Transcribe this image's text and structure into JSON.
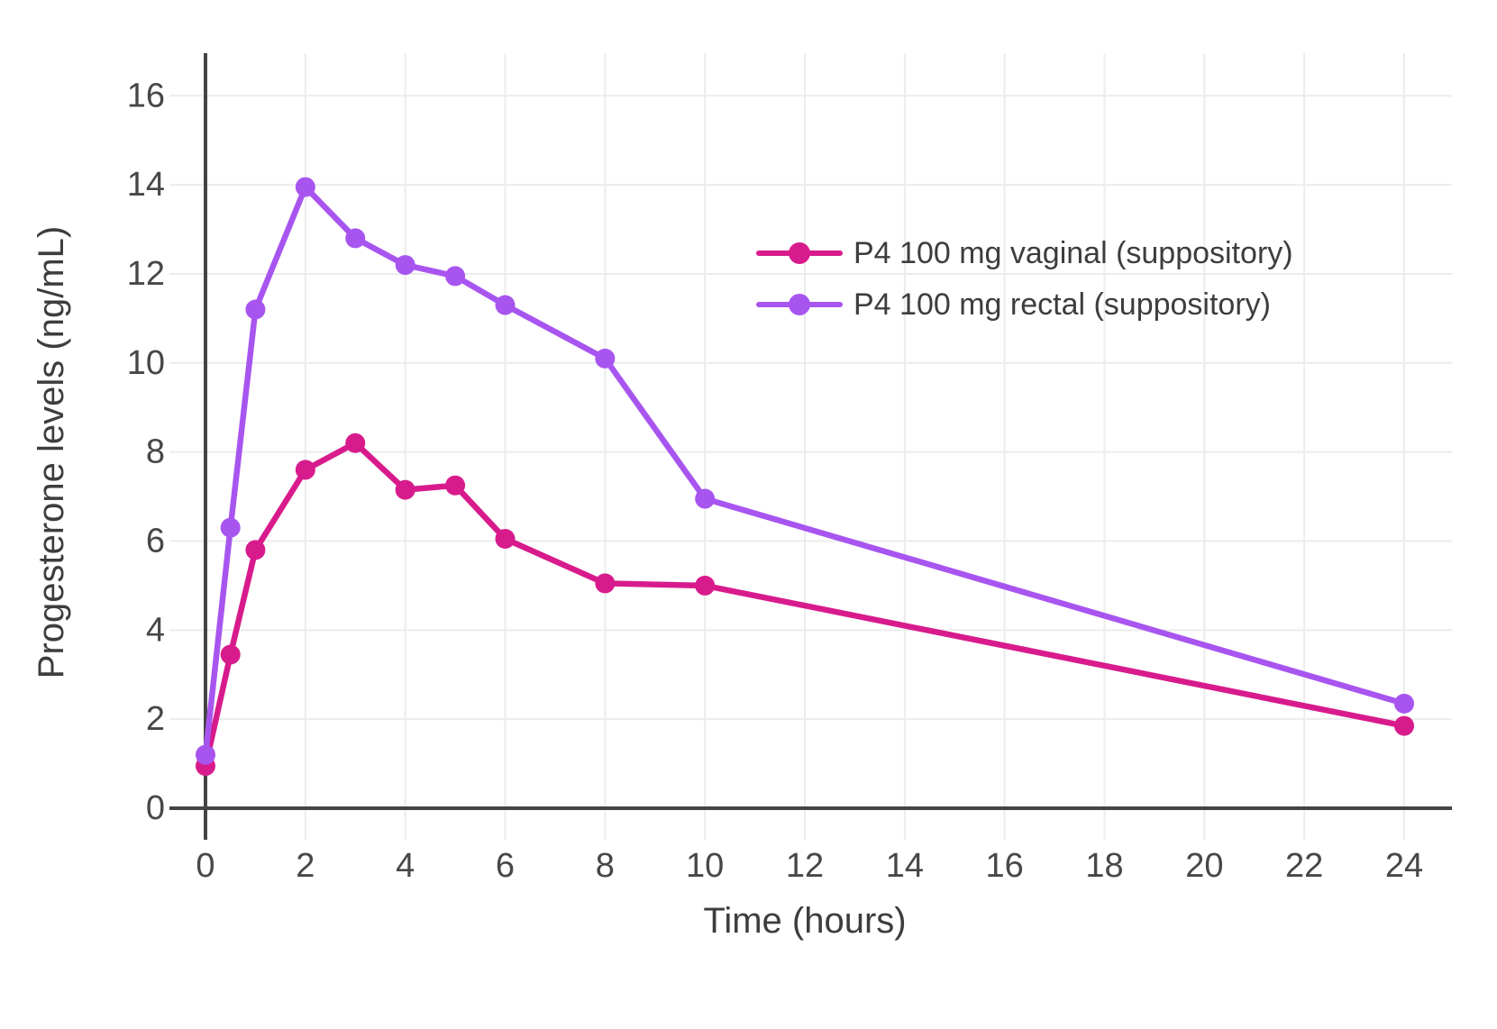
{
  "chart_data": {
    "type": "line",
    "title": "",
    "xlabel": "Time (hours)",
    "ylabel": "Progesterone levels (ng/mL)",
    "x": [
      0,
      0.5,
      1,
      2,
      3,
      4,
      5,
      6,
      8,
      10,
      24
    ],
    "series": [
      {
        "name": "P4 100 mg vaginal (suppository)",
        "color": "#d81b8c",
        "values": [
          0.95,
          3.45,
          5.8,
          7.6,
          8.2,
          7.15,
          7.25,
          6.05,
          5.05,
          5.0,
          1.85
        ]
      },
      {
        "name": "P4 100 mg rectal (suppository)",
        "color": "#a855f0",
        "values": [
          1.2,
          6.3,
          11.2,
          13.95,
          12.8,
          12.2,
          11.95,
          11.3,
          10.1,
          6.95,
          2.35
        ]
      }
    ],
    "xticks": [
      0,
      2,
      4,
      6,
      8,
      10,
      12,
      14,
      16,
      18,
      20,
      22,
      24
    ],
    "yticks": [
      0,
      2,
      4,
      6,
      8,
      10,
      12,
      14,
      16
    ],
    "xlim": [
      0,
      25
    ],
    "ylim": [
      0,
      17
    ],
    "grid": true,
    "legend_position": "inside upper right"
  },
  "style": {
    "axis_color": "#444444",
    "grid_color": "#ececec",
    "tick_text_color": "#474747",
    "label_text_color": "#3d3d3d",
    "background_color": "#ffffff"
  }
}
